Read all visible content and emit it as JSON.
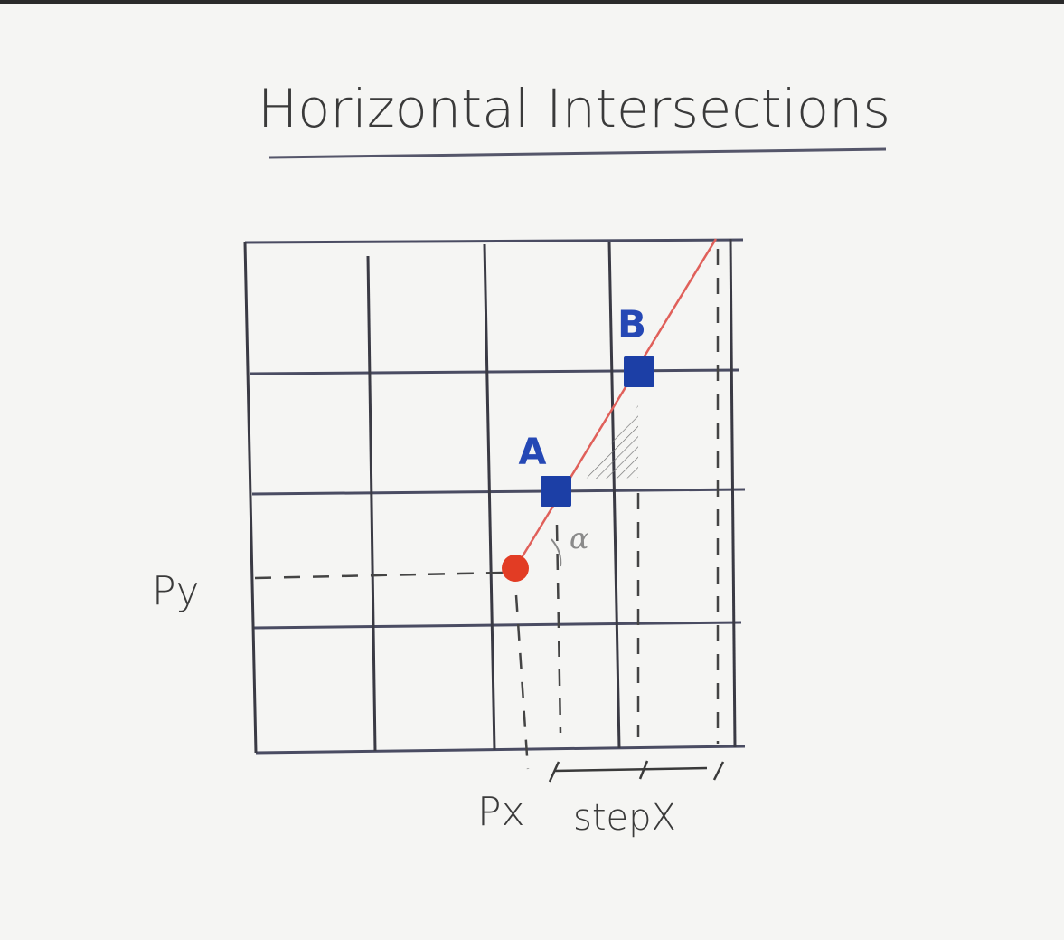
{
  "title": "Horizontal Intersections",
  "labels": {
    "point_a": "A",
    "point_b": "B",
    "px": "Px",
    "py": "Py",
    "stepx": "stepX",
    "angle": "α"
  },
  "colors": {
    "background": "#f5f5f3",
    "grid": "#3a3a44",
    "grid_bold": "#4a4c62",
    "ray": "#e0605a",
    "player": "#e23c24",
    "intersection": "#1c3fa6",
    "ink": "#3a3a3a",
    "dashed": "#444444"
  }
}
